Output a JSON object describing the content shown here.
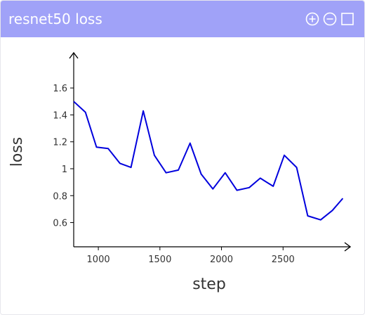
{
  "panel": {
    "title": "resnet50 loss",
    "controls": [
      "zoom-in-icon",
      "zoom-out-icon",
      "maximize-icon"
    ]
  },
  "colors": {
    "header_bg": "#a0a2f8",
    "line": "#0000dd",
    "axis": "#000000"
  },
  "chart_data": {
    "type": "line",
    "title": "",
    "xlabel": "step",
    "ylabel": "loss",
    "xlim": [
      800,
      3000
    ],
    "ylim": [
      0.42,
      1.82
    ],
    "xticks": [
      1000,
      1500,
      2000,
      2500
    ],
    "xtick_labels": [
      "1000",
      "1500",
      "2000",
      "2500"
    ],
    "yticks": [
      0.6,
      0.8,
      1.0,
      1.2,
      1.4,
      1.6
    ],
    "ytick_labels": [
      "0.6",
      "0.8",
      "1",
      "1.2",
      "1.4",
      "1.6"
    ],
    "grid": false,
    "legend": "none",
    "series": [
      {
        "x": [
          800,
          895,
          985,
          1080,
          1175,
          1265,
          1365,
          1455,
          1550,
          1650,
          1745,
          1835,
          1930,
          2030,
          2125,
          2225,
          2315,
          2420,
          2510,
          2610,
          2700,
          2805,
          2900,
          2985
        ],
        "y": [
          1.5,
          1.42,
          1.16,
          1.15,
          1.04,
          1.01,
          1.43,
          1.1,
          0.97,
          0.99,
          1.19,
          0.96,
          0.85,
          0.97,
          0.84,
          0.86,
          0.93,
          0.87,
          1.1,
          1.01,
          0.65,
          0.62,
          0.69,
          0.78
        ]
      }
    ]
  }
}
